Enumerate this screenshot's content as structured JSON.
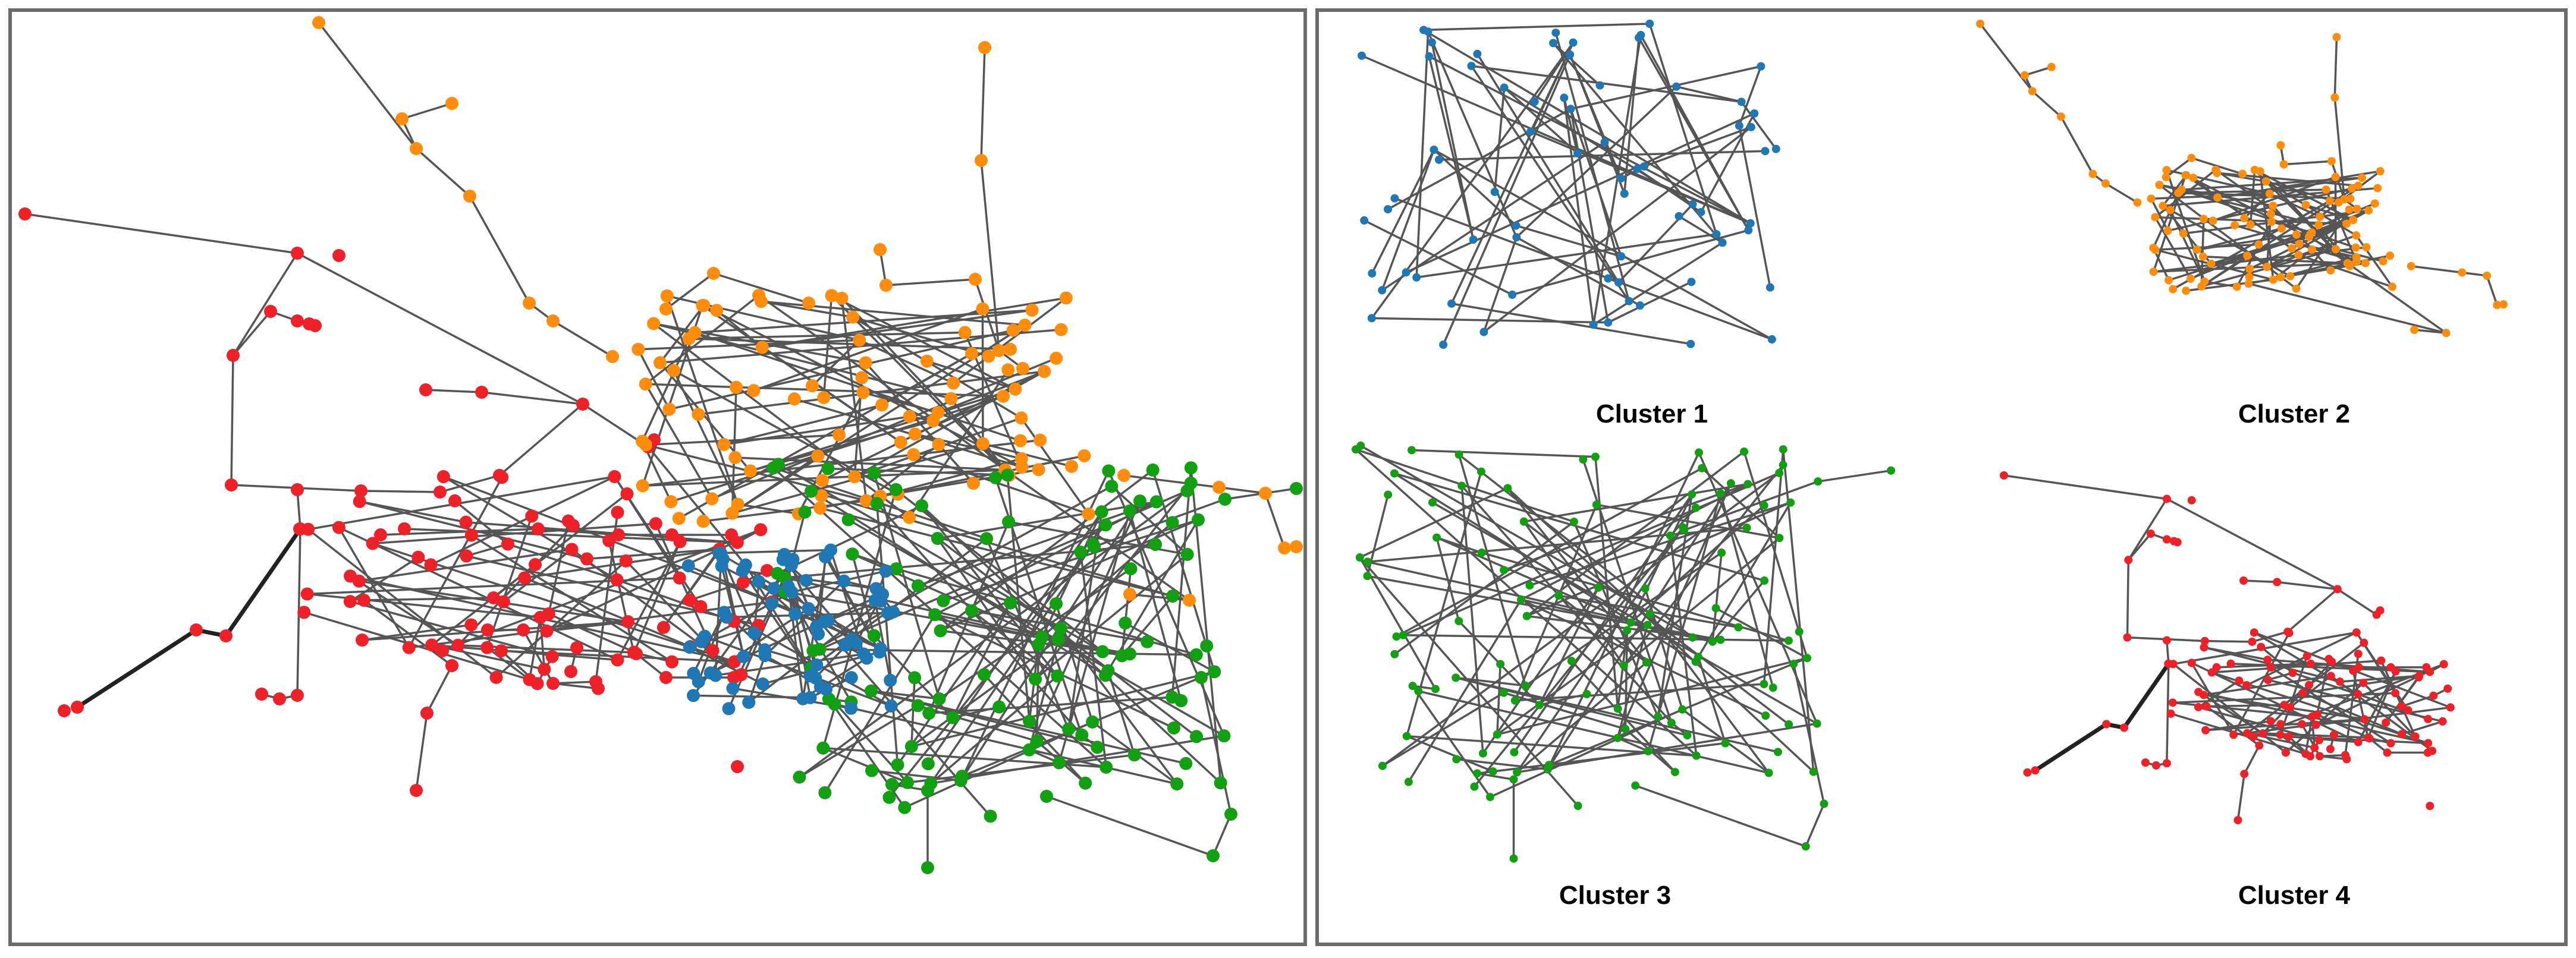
{
  "colors": {
    "cluster_1": "#1f77b4",
    "cluster_2": "#ff8c0a",
    "cluster_3": "#12a012",
    "cluster_4": "#ee2028",
    "edge": "#555555",
    "panel_border": "#6b6b6b"
  },
  "panels": {
    "left": {
      "content": "combined network, all clusters colored"
    },
    "right": {
      "captions": [
        "Cluster 1",
        "Cluster 2",
        "Cluster 3",
        "Cluster 4"
      ]
    }
  }
}
